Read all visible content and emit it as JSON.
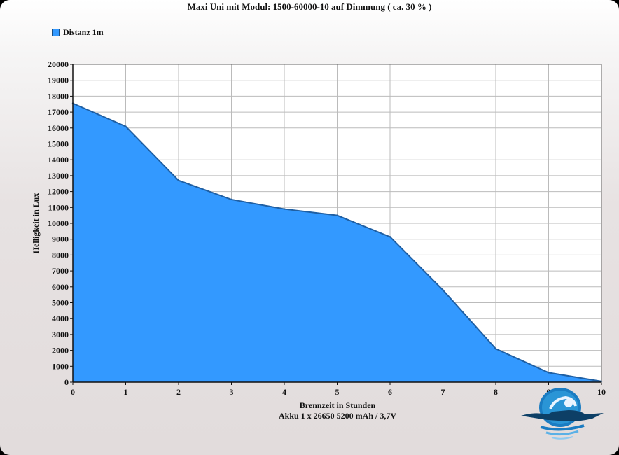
{
  "title": "Maxi Uni mit Modul: 1500-60000-10 auf Dimmung ( ca. 30 % )",
  "legend": {
    "entries": [
      "Distanz 1m"
    ]
  },
  "chart_data": {
    "type": "area",
    "title": "Maxi Uni mit Modul: 1500-60000-10 auf Dimmung ( ca. 30 % )",
    "xlabel": "Brennzeit in Stunden",
    "xlabel_line2": "Akku 1 x 26650 5200 mAh / 3,7V",
    "ylabel": "Helligkeit in Lux",
    "x": [
      0,
      1,
      2,
      3,
      4,
      5,
      6,
      7,
      8,
      9,
      10
    ],
    "xlim": [
      0,
      10
    ],
    "ylim": [
      0,
      20000
    ],
    "yticks": [
      0,
      1000,
      2000,
      3000,
      4000,
      5000,
      6000,
      7000,
      8000,
      9000,
      10000,
      11000,
      12000,
      13000,
      14000,
      15000,
      16000,
      17000,
      18000,
      19000,
      20000
    ],
    "series": [
      {
        "name": "Distanz 1m",
        "color": "#3399ff",
        "values": [
          17550,
          16100,
          12700,
          11500,
          10900,
          10500,
          9150,
          5800,
          2100,
          600,
          50
        ]
      }
    ],
    "grid": true,
    "legend_position": "top-left"
  },
  "colors": {
    "fill": "#3399ff",
    "line": "#1f5fa3",
    "grid": "#bbbbbb",
    "plot_bg": "#ffffff"
  },
  "logo": {
    "icon": "diver-logo-icon"
  }
}
